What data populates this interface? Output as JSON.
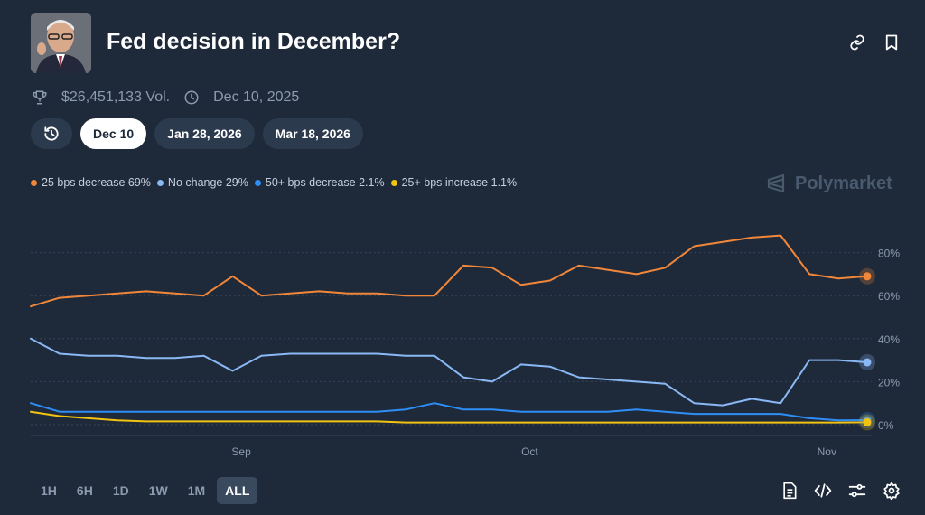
{
  "header": {
    "title": "Fed decision in December?",
    "avatar_icon": "person-portrait-icon",
    "actions": [
      "link-icon",
      "bookmark-icon"
    ]
  },
  "meta": {
    "volume": "$26,451,133 Vol.",
    "volume_icon": "trophy-icon",
    "end_date": "Dec 10, 2025",
    "end_date_icon": "clock-icon"
  },
  "date_tabs": [
    {
      "label": "Dec 10",
      "active": true
    },
    {
      "label": "Jan 28, 2026",
      "active": false
    },
    {
      "label": "Mar 18, 2026",
      "active": false
    }
  ],
  "brand": "Polymarket",
  "legend": [
    {
      "label": "25 bps decrease 69%",
      "color": "#f2873a"
    },
    {
      "label": "No change 29%",
      "color": "#8ab8f5"
    },
    {
      "label": "50+ bps decrease 2.1%",
      "color": "#2e8ef7"
    },
    {
      "label": "25+ bps increase 1.1%",
      "color": "#f2c311"
    }
  ],
  "range_tabs": [
    {
      "label": "1H",
      "active": false
    },
    {
      "label": "6H",
      "active": false
    },
    {
      "label": "1D",
      "active": false
    },
    {
      "label": "1W",
      "active": false
    },
    {
      "label": "1M",
      "active": false
    },
    {
      "label": "ALL",
      "active": true
    }
  ],
  "tools": [
    "document-icon",
    "code-icon",
    "sliders-icon",
    "gear-icon"
  ],
  "chart_data": {
    "type": "line",
    "x_ticks": [
      "Sep",
      "Oct",
      "Nov"
    ],
    "y_ticks": [
      "0%",
      "20%",
      "40%",
      "60%",
      "80%"
    ],
    "ylim": [
      0,
      100
    ],
    "grid": true,
    "legend_position": "top-left",
    "x_note": "dates from mid-August 2025 to early November 2025",
    "x": [
      "Aug 10",
      "Aug 13",
      "Aug 16",
      "Aug 19",
      "Aug 22",
      "Aug 25",
      "Aug 28",
      "Aug 31",
      "Sep 3",
      "Sep 6",
      "Sep 9",
      "Sep 12",
      "Sep 15",
      "Sep 18",
      "Sep 21",
      "Sep 24",
      "Sep 27",
      "Sep 30",
      "Oct 3",
      "Oct 6",
      "Oct 9",
      "Oct 12",
      "Oct 15",
      "Oct 18",
      "Oct 21",
      "Oct 24",
      "Oct 27",
      "Oct 30",
      "Nov 2",
      "Nov 4"
    ],
    "series": [
      {
        "name": "25 bps decrease",
        "color": "#f2873a",
        "end_label": "69%",
        "values": [
          55,
          59,
          60,
          61,
          62,
          61,
          60,
          69,
          60,
          61,
          62,
          61,
          61,
          60,
          60,
          74,
          73,
          65,
          67,
          74,
          72,
          70,
          73,
          83,
          85,
          87,
          88,
          70,
          68,
          69
        ]
      },
      {
        "name": "No change",
        "color": "#8ab8f5",
        "end_label": "29%",
        "values": [
          40,
          33,
          32,
          32,
          31,
          31,
          32,
          25,
          32,
          33,
          33,
          33,
          33,
          32,
          32,
          22,
          20,
          28,
          27,
          22,
          21,
          20,
          19,
          10,
          9,
          12,
          10,
          30,
          30,
          29
        ]
      },
      {
        "name": "50+ bps decrease",
        "color": "#2e8ef7",
        "end_label": "2.1%",
        "values": [
          10,
          6,
          6,
          6,
          6,
          6,
          6,
          6,
          6,
          6,
          6,
          6,
          6,
          7,
          10,
          7,
          7,
          6,
          6,
          6,
          6,
          7,
          6,
          5,
          5,
          5,
          5,
          3,
          2,
          2.1
        ]
      },
      {
        "name": "25+ bps increase",
        "color": "#f2c311",
        "end_label": "1.1%",
        "values": [
          6,
          4,
          3,
          2,
          1.5,
          1.5,
          1.5,
          1.5,
          1.5,
          1.5,
          1.5,
          1.5,
          1.5,
          1,
          1,
          1,
          1,
          1,
          1,
          1,
          1,
          1,
          1,
          1,
          1,
          1,
          1,
          1,
          1,
          1.1
        ]
      }
    ]
  }
}
